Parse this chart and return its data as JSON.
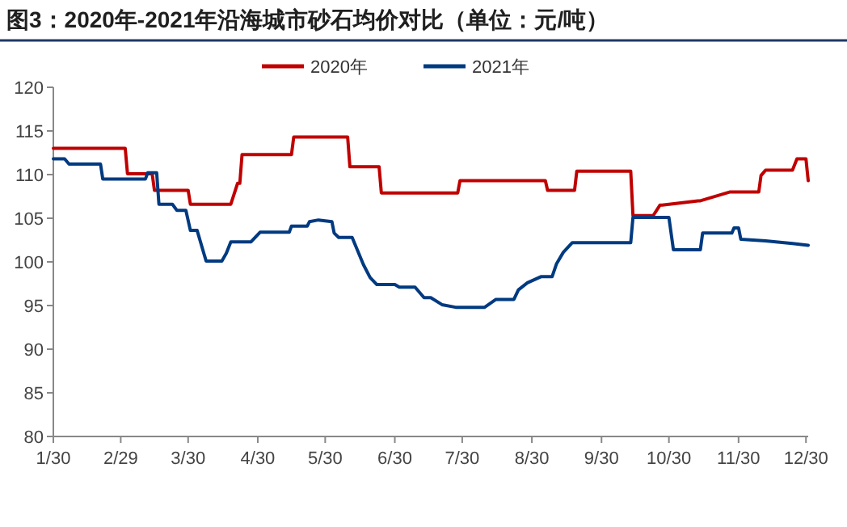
{
  "chart_data": {
    "type": "line",
    "title": "图3：2020年-2021年沿海城市砂石均价对比（单位：元/吨）",
    "legend": "top",
    "grid": false,
    "line_style": "solid",
    "xlim": [
      "--01-30",
      "--12-31"
    ],
    "xticks": [
      {
        "value": "--01-30",
        "label": "1/30"
      },
      {
        "value": "--02-29",
        "label": "2/29"
      },
      {
        "value": "--03-30",
        "label": "3/30"
      },
      {
        "value": "--04-30",
        "label": "4/30"
      },
      {
        "value": "--05-30",
        "label": "5/30"
      },
      {
        "value": "--06-30",
        "label": "6/30"
      },
      {
        "value": "--07-30",
        "label": "7/30"
      },
      {
        "value": "--08-30",
        "label": "8/30"
      },
      {
        "value": "--09-30",
        "label": "9/30"
      },
      {
        "value": "--10-30",
        "label": "10/30"
      },
      {
        "value": "--11-30",
        "label": "11/30"
      },
      {
        "value": "--12-30",
        "label": "12/30"
      }
    ],
    "ylim": [
      80,
      120
    ],
    "yticks": [
      80,
      85,
      90,
      95,
      100,
      105,
      110,
      115,
      120
    ],
    "series": [
      {
        "name": "2020年",
        "color": "#c00000",
        "x": [
          "--01-30",
          "--03-02",
          "--03-03",
          "--03-14",
          "--03-15",
          "--03-30",
          "--03-31",
          "--04-18",
          "--04-21",
          "--04-22",
          "--04-23",
          "--05-15",
          "--05-16",
          "--06-09",
          "--06-10",
          "--06-23",
          "--06-24",
          "--07-28",
          "--07-29",
          "--09-05",
          "--09-06",
          "--09-18",
          "--09-19",
          "--10-13",
          "--10-14",
          "--10-23",
          "--10-26",
          "--10-27",
          "--11-12",
          "--11-13",
          "--11-26",
          "--11-27",
          "--12-09",
          "--12-10",
          "--12-12",
          "--12-24",
          "--12-26",
          "--12-30",
          "--12-31"
        ],
        "values": [
          113,
          113,
          110.1,
          110.1,
          108.2,
          108.2,
          106.6,
          106.6,
          109,
          109,
          112.3,
          112.3,
          114.3,
          114.3,
          110.9,
          110.9,
          107.9,
          107.9,
          109.3,
          109.3,
          108.2,
          108.2,
          110.4,
          110.4,
          105.3,
          105.3,
          106.5,
          106.5,
          107,
          107,
          108,
          108,
          108,
          109.9,
          110.5,
          110.5,
          111.8,
          111.8,
          109.3
        ]
      },
      {
        "name": "2021年",
        "color": "#003a80",
        "x": [
          "--01-30",
          "--02-04",
          "--02-06",
          "--02-20",
          "--02-21",
          "--03-11",
          "--03-12",
          "--03-16",
          "--03-17",
          "--03-23",
          "--03-25",
          "--03-29",
          "--03-31",
          "--04-03",
          "--04-07",
          "--04-14",
          "--04-16",
          "--04-18",
          "--04-27",
          "--05-01",
          "--05-14",
          "--05-15",
          "--05-22",
          "--05-23",
          "--05-27",
          "--06-02",
          "--06-03",
          "--06-05",
          "--06-11",
          "--06-16",
          "--06-19",
          "--06-22",
          "--06-30",
          "--07-02",
          "--07-09",
          "--07-13",
          "--07-16",
          "--07-21",
          "--07-27",
          "--08-09",
          "--08-14",
          "--08-22",
          "--08-24",
          "--08-28",
          "--09-03",
          "--09-08",
          "--09-10",
          "--09-13",
          "--09-17",
          "--10-13",
          "--10-14",
          "--10-30",
          "--11-01",
          "--11-13",
          "--11-14",
          "--11-27",
          "--11-28",
          "--11-30",
          "--12-01",
          "--12-12",
          "--12-24",
          "--12-31"
        ],
        "values": [
          111.8,
          111.8,
          111.2,
          111.2,
          109.5,
          109.5,
          110.2,
          110.2,
          106.6,
          106.6,
          105.9,
          105.9,
          103.6,
          103.6,
          100.1,
          100.1,
          101,
          102.3,
          102.3,
          103.4,
          103.4,
          104.1,
          104.1,
          104.6,
          104.8,
          104.6,
          103.3,
          102.8,
          102.8,
          99.7,
          98.2,
          97.4,
          97.4,
          97.1,
          97.1,
          95.9,
          95.9,
          95.1,
          94.8,
          94.8,
          95.7,
          95.7,
          96.8,
          97.6,
          98.3,
          98.3,
          99.8,
          101.1,
          102.2,
          102.2,
          105.1,
          105.1,
          101.4,
          101.4,
          103.3,
          103.3,
          103.9,
          103.9,
          102.6,
          102.4,
          102.1,
          101.9
        ]
      }
    ]
  }
}
